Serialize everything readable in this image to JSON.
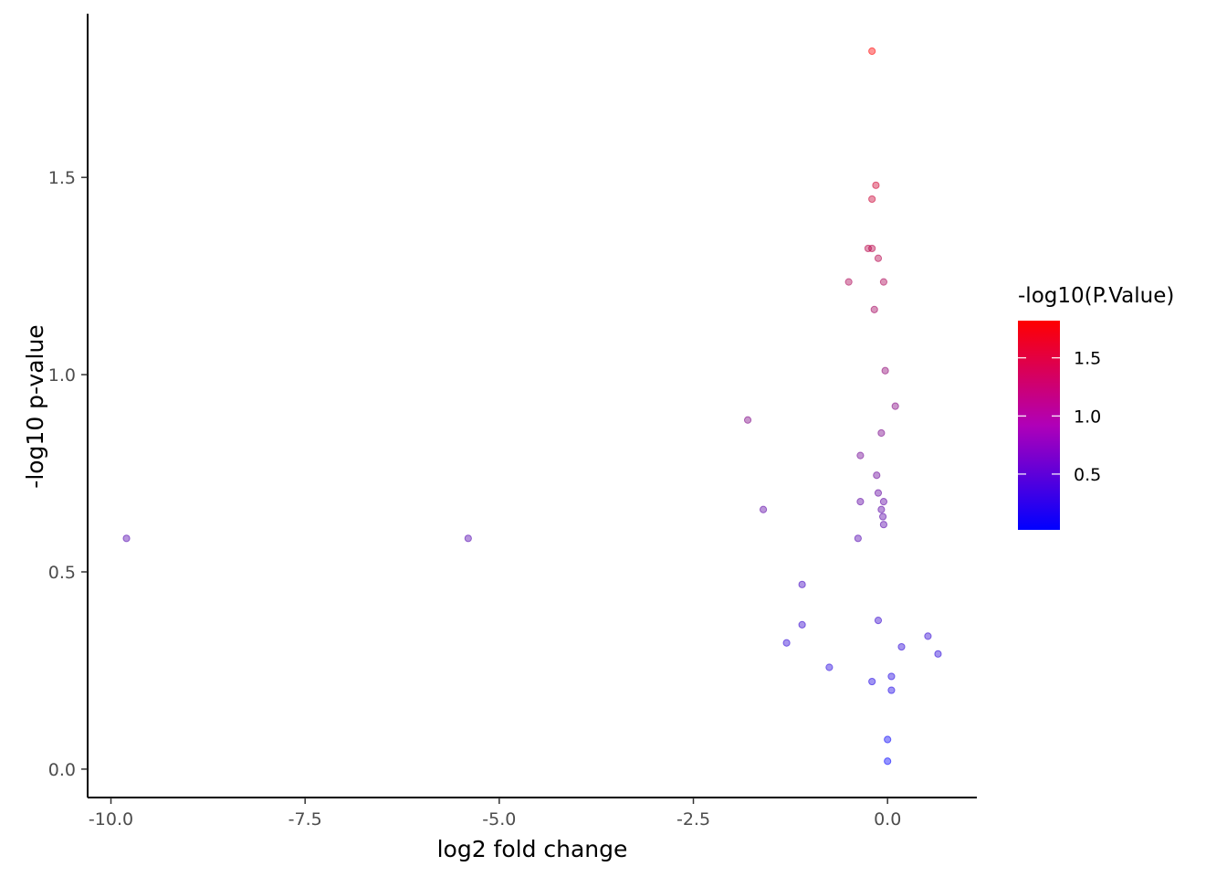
{
  "chart_data": {
    "type": "scatter",
    "title": "",
    "xlabel": "log2 fold change",
    "ylabel": "-log10 p-value",
    "xlim": [
      -10.3,
      1.15
    ],
    "ylim": [
      -0.072,
      1.915
    ],
    "x_ticks": [
      -10.0,
      -7.5,
      -5.0,
      -2.5,
      0.0
    ],
    "x_tick_labels": [
      "-10.0",
      "-7.5",
      "-5.0",
      "-2.5",
      "0.0"
    ],
    "y_ticks": [
      0.0,
      0.5,
      1.0,
      1.5
    ],
    "y_tick_labels": [
      "0.0",
      "0.5",
      "1.0",
      "1.5"
    ],
    "grid": false,
    "color_scale": {
      "title": "-log10(P.Value)",
      "low_color": "#0000ff",
      "high_color": "#ff0000",
      "min": 0.02,
      "max": 1.82,
      "ticks": [
        0.5,
        1.0,
        1.5
      ],
      "tick_labels": [
        "0.5",
        "1.0",
        "1.5"
      ],
      "placement": "right"
    },
    "points": [
      {
        "x": -0.2,
        "y": 1.82
      },
      {
        "x": -0.15,
        "y": 1.48
      },
      {
        "x": -0.2,
        "y": 1.445
      },
      {
        "x": -0.25,
        "y": 1.32
      },
      {
        "x": -0.2,
        "y": 1.32
      },
      {
        "x": -0.12,
        "y": 1.295
      },
      {
        "x": -0.5,
        "y": 1.235
      },
      {
        "x": -0.05,
        "y": 1.235
      },
      {
        "x": -0.17,
        "y": 1.165
      },
      {
        "x": -0.03,
        "y": 1.01
      },
      {
        "x": 0.1,
        "y": 0.92
      },
      {
        "x": -1.8,
        "y": 0.885
      },
      {
        "x": -0.08,
        "y": 0.852
      },
      {
        "x": -0.35,
        "y": 0.795
      },
      {
        "x": -0.14,
        "y": 0.745
      },
      {
        "x": -0.12,
        "y": 0.7
      },
      {
        "x": -0.35,
        "y": 0.678
      },
      {
        "x": -0.05,
        "y": 0.678
      },
      {
        "x": -1.6,
        "y": 0.658
      },
      {
        "x": -0.08,
        "y": 0.658
      },
      {
        "x": -0.06,
        "y": 0.64
      },
      {
        "x": -0.05,
        "y": 0.62
      },
      {
        "x": -9.8,
        "y": 0.585
      },
      {
        "x": -5.4,
        "y": 0.585
      },
      {
        "x": -0.38,
        "y": 0.585
      },
      {
        "x": -1.1,
        "y": 0.468
      },
      {
        "x": -0.12,
        "y": 0.377
      },
      {
        "x": -1.1,
        "y": 0.366
      },
      {
        "x": 0.52,
        "y": 0.337
      },
      {
        "x": -1.3,
        "y": 0.32
      },
      {
        "x": 0.18,
        "y": 0.31
      },
      {
        "x": 0.65,
        "y": 0.292
      },
      {
        "x": -0.75,
        "y": 0.258
      },
      {
        "x": 0.05,
        "y": 0.235
      },
      {
        "x": -0.2,
        "y": 0.222
      },
      {
        "x": 0.05,
        "y": 0.2
      },
      {
        "x": 0.0,
        "y": 0.075
      },
      {
        "x": 0.0,
        "y": 0.02
      }
    ]
  }
}
